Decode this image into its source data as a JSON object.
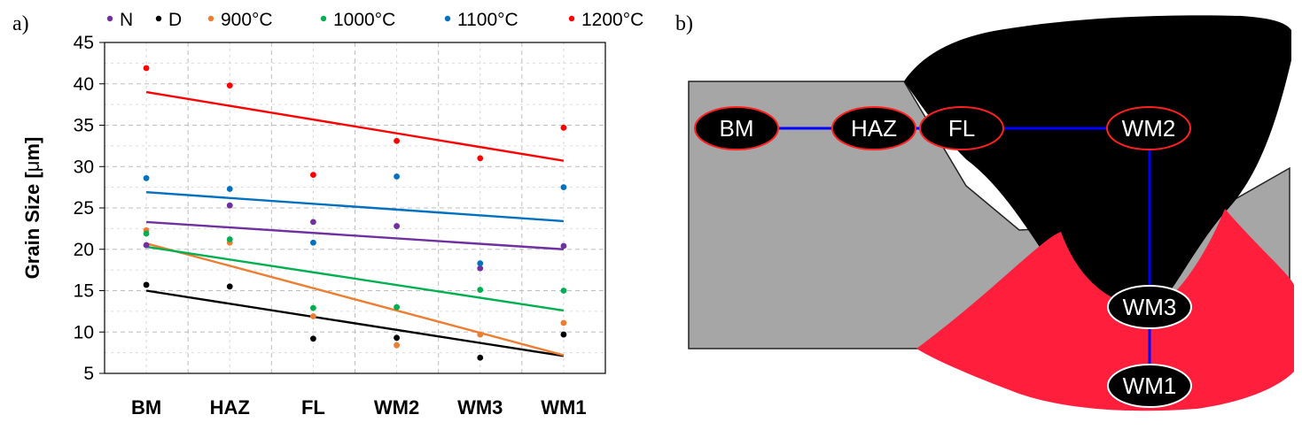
{
  "chart_data": {
    "type": "scatter",
    "panel_label": "a)",
    "ylabel_prefix": "Grain Size [",
    "ylabel_mu": "μ",
    "ylabel_suffix": "m]",
    "xlabel": "",
    "categories": [
      "BM",
      "HAZ",
      "FL",
      "WM2",
      "WM3",
      "WM1"
    ],
    "ylim": [
      5,
      45
    ],
    "yticks": [
      5,
      10,
      15,
      20,
      25,
      30,
      35,
      40,
      45
    ],
    "grid": true,
    "legend_position": "top",
    "series": [
      {
        "name": "N",
        "color": "#7030a0",
        "values": [
          20.5,
          25.3,
          23.3,
          22.8,
          17.7,
          20.4
        ],
        "trend": [
          23.3,
          20.0
        ]
      },
      {
        "name": "D",
        "color": "#000000",
        "values": [
          15.7,
          15.5,
          9.2,
          9.3,
          6.9,
          9.7
        ],
        "trend": [
          15.0,
          7.1
        ]
      },
      {
        "name": "900°C",
        "color": "#ed7d31",
        "values": [
          22.3,
          20.8,
          11.9,
          8.4,
          9.7,
          11.1
        ],
        "trend": [
          20.7,
          7.2
        ]
      },
      {
        "name": "1000°C",
        "color": "#00b050",
        "values": [
          21.9,
          21.2,
          12.9,
          13.0,
          15.1,
          15.0
        ],
        "trend": [
          20.3,
          12.6
        ]
      },
      {
        "name": "1100°C",
        "color": "#0070c0",
        "values": [
          28.6,
          27.3,
          20.8,
          28.8,
          18.3,
          27.5
        ],
        "trend": [
          26.9,
          23.4
        ]
      },
      {
        "name": "1200°C",
        "color": "#ff0000",
        "values": [
          41.9,
          39.8,
          29.0,
          33.1,
          31.0,
          34.7
        ],
        "trend": [
          39.0,
          30.7
        ]
      }
    ]
  },
  "diagram": {
    "panel_label": "b)",
    "colors": {
      "plate": "#a6a6a6",
      "weld": "#000000",
      "root": "#ff1f3d",
      "path": "#0000ff"
    },
    "nodes": [
      {
        "key": "bm",
        "label": "BM"
      },
      {
        "key": "haz",
        "label": "HAZ"
      },
      {
        "key": "fl",
        "label": "FL"
      },
      {
        "key": "wm2",
        "label": "WM2"
      },
      {
        "key": "wm3",
        "label": "WM3"
      },
      {
        "key": "wm1",
        "label": "WM1"
      }
    ]
  }
}
